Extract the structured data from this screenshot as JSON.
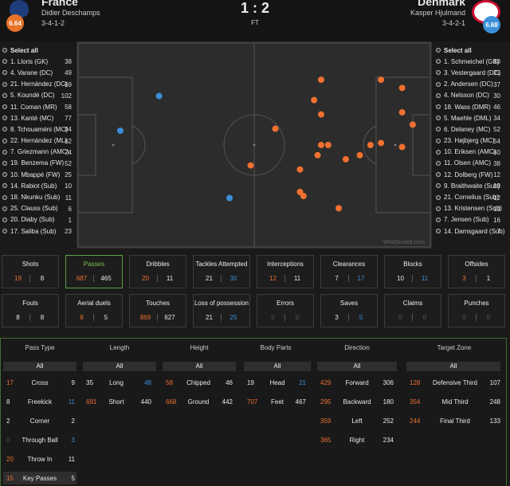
{
  "header": {
    "home": {
      "name": "France",
      "coach": "Didier Deschamps",
      "formation": "3-4-1-2",
      "rating": "6.64",
      "crest_color": "#1e3c7a",
      "badge_color": "#e8732a"
    },
    "away": {
      "name": "Denmark",
      "coach": "Kasper Hjulmand",
      "formation": "3-4-2-1",
      "rating": "6.68",
      "crest_color": "#c8102e",
      "badge_color": "#3b8fd8"
    },
    "score": "1 : 2",
    "status": "FT"
  },
  "home_players": [
    {
      "name": "Select all",
      "value": ""
    },
    {
      "name": "1. Lloris (GK)",
      "value": "38"
    },
    {
      "name": "4. Varane (DC)",
      "value": "49"
    },
    {
      "name": "21. Hernández (DC)",
      "value": "69"
    },
    {
      "name": "5. Koundé (DC)",
      "value": "102"
    },
    {
      "name": "11. Coman (MR)",
      "value": "58"
    },
    {
      "name": "13. Kanté (MC)",
      "value": "77"
    },
    {
      "name": "8. Tchouaméni (MC)",
      "value": "94"
    },
    {
      "name": "22. Hernández (ML)",
      "value": "62"
    },
    {
      "name": "7. Griezmann (AMC)",
      "value": "74"
    },
    {
      "name": "19. Benzema (FW)",
      "value": "52"
    },
    {
      "name": "10. Mbappé (FW)",
      "value": "25"
    },
    {
      "name": "14. Rabiot (Sub)",
      "value": "10"
    },
    {
      "name": "18. Nkunku (Sub)",
      "value": "11"
    },
    {
      "name": "25. Clauss (Sub)",
      "value": "6"
    },
    {
      "name": "20. Diaby (Sub)",
      "value": "1"
    },
    {
      "name": "17. Saliba (Sub)",
      "value": "23"
    }
  ],
  "away_players": [
    {
      "name": "Select all",
      "value": ""
    },
    {
      "name": "1. Schmeichel (GK)",
      "value": "30"
    },
    {
      "name": "3. Vestergaard (DC)",
      "value": "22"
    },
    {
      "name": "2. Andersen (DC)",
      "value": "37"
    },
    {
      "name": "4. Nelsson (DC)",
      "value": "30"
    },
    {
      "name": "18. Wass (DMR)",
      "value": "46"
    },
    {
      "name": "5. Maehle (DML)",
      "value": "34"
    },
    {
      "name": "6. Delaney (MC)",
      "value": "52"
    },
    {
      "name": "23. Højbjerg (MC)",
      "value": "54"
    },
    {
      "name": "10. Eriksen (AMC)",
      "value": "60"
    },
    {
      "name": "11. Olsen (AMC)",
      "value": "38"
    },
    {
      "name": "12. Dolberg (FW)",
      "value": "12"
    },
    {
      "name": "9. Braithwaite (Sub)",
      "value": "19"
    },
    {
      "name": "21. Cornelius (Sub)",
      "value": "12"
    },
    {
      "name": "13. Kristensen (Sub)",
      "value": "13"
    },
    {
      "name": "7. Jensen (Sub)",
      "value": "16"
    },
    {
      "name": "14. Damsgaard (Sub)",
      "value": "7"
    }
  ],
  "pitch": {
    "watermark": "WhoScored.com",
    "home_passes": [
      [
        49,
        60
      ],
      [
        63,
        62
      ],
      [
        64,
        75
      ],
      [
        68,
        55
      ],
      [
        71,
        50
      ],
      [
        83,
        50
      ],
      [
        86,
        49
      ],
      [
        92,
        51
      ],
      [
        95,
        40
      ],
      [
        92,
        34
      ],
      [
        92,
        22
      ],
      [
        86,
        18
      ],
      [
        69,
        18
      ],
      [
        67,
        28
      ],
      [
        69,
        35
      ],
      [
        69,
        50
      ],
      [
        80,
        55
      ],
      [
        76,
        57
      ],
      [
        74,
        81
      ],
      [
        56,
        42
      ],
      [
        63,
        73
      ]
    ],
    "away_passes": [
      [
        12,
        43
      ],
      [
        23,
        26
      ],
      [
        43,
        76
      ]
    ]
  },
  "stats_row1": [
    {
      "label": "Shots",
      "home": "19",
      "away": "8",
      "home_color": "#f07030",
      "away_color": "#e8e8e8"
    },
    {
      "label": "Passes",
      "home": "687",
      "away": "465",
      "home_color": "#f07030",
      "away_color": "#e8e8e8",
      "active": true
    },
    {
      "label": "Dribbles",
      "home": "20",
      "away": "11",
      "home_color": "#f07030",
      "away_color": "#e8e8e8"
    },
    {
      "label": "Tackles Attempted",
      "home": "21",
      "away": "30",
      "home_color": "#e8e8e8",
      "away_color": "#3b8fd8"
    },
    {
      "label": "Interceptions",
      "home": "12",
      "away": "11",
      "home_color": "#f07030",
      "away_color": "#e8e8e8"
    },
    {
      "label": "Clearances",
      "home": "7",
      "away": "17",
      "home_color": "#e8e8e8",
      "away_color": "#3b8fd8"
    },
    {
      "label": "Blocks",
      "home": "10",
      "away": "11",
      "home_color": "#e8e8e8",
      "away_color": "#3b8fd8"
    },
    {
      "label": "Offsides",
      "home": "3",
      "away": "1",
      "home_color": "#f07030",
      "away_color": "#e8e8e8"
    }
  ],
  "stats_row2": [
    {
      "label": "Fouls",
      "home": "8",
      "away": "8",
      "home_color": "#e8e8e8",
      "away_color": "#e8e8e8"
    },
    {
      "label": "Aerial duels",
      "home": "8",
      "away": "5",
      "home_color": "#f07030",
      "away_color": "#e8e8e8"
    },
    {
      "label": "Touches",
      "home": "869",
      "away": "627",
      "home_color": "#f07030",
      "away_color": "#e8e8e8"
    },
    {
      "label": "Loss of possession",
      "home": "21",
      "away": "25",
      "home_color": "#e8e8e8",
      "away_color": "#3b8fd8"
    },
    {
      "label": "Errors",
      "home": "0",
      "away": "0",
      "home_color": "#555555",
      "away_color": "#555555"
    },
    {
      "label": "Saves",
      "home": "3",
      "away": "5",
      "home_color": "#e8e8e8",
      "away_color": "#3b8fd8"
    },
    {
      "label": "Claims",
      "home": "0",
      "away": "0",
      "home_color": "#555555",
      "away_color": "#555555"
    },
    {
      "label": "Punches",
      "home": "0",
      "away": "0",
      "home_color": "#555555",
      "away_color": "#555555"
    }
  ],
  "filters": {
    "all_label": "All",
    "columns": [
      {
        "title": "Pass Type",
        "rows": [
          {
            "label": "Cross",
            "home": "17",
            "away": "9",
            "home_color": "#f07030",
            "away_color": "#e8e8e8"
          },
          {
            "label": "Freekick",
            "home": "8",
            "away": "11",
            "home_color": "#e8e8e8",
            "away_color": "#3b8fd8"
          },
          {
            "label": "Corner",
            "home": "2",
            "away": "2",
            "home_color": "#e8e8e8",
            "away_color": "#e8e8e8"
          },
          {
            "label": "Through Ball",
            "home": "0",
            "away": "3",
            "home_color": "#555555",
            "away_color": "#3b8fd8"
          },
          {
            "label": "Throw In",
            "home": "20",
            "away": "11",
            "home_color": "#f07030",
            "away_color": "#e8e8e8"
          },
          {
            "label": "Key Passes",
            "home": "15",
            "away": "5",
            "home_color": "#f07030",
            "away_color": "#e8e8e8"
          }
        ]
      },
      {
        "title": "Length",
        "rows": [
          {
            "label": "Long",
            "home": "35",
            "away": "48",
            "home_color": "#e8e8e8",
            "away_color": "#3b8fd8"
          },
          {
            "label": "Short",
            "home": "691",
            "away": "440",
            "home_color": "#f07030",
            "away_color": "#e8e8e8"
          }
        ]
      },
      {
        "title": "Height",
        "rows": [
          {
            "label": "Chipped",
            "home": "58",
            "away": "46",
            "home_color": "#f07030",
            "away_color": "#e8e8e8"
          },
          {
            "label": "Ground",
            "home": "668",
            "away": "442",
            "home_color": "#f07030",
            "away_color": "#e8e8e8"
          }
        ]
      },
      {
        "title": "Body Parts",
        "rows": [
          {
            "label": "Head",
            "home": "19",
            "away": "21",
            "home_color": "#e8e8e8",
            "away_color": "#3b8fd8"
          },
          {
            "label": "Feet",
            "home": "707",
            "away": "467",
            "home_color": "#f07030",
            "away_color": "#e8e8e8"
          }
        ]
      },
      {
        "title": "Direction",
        "rows": [
          {
            "label": "Forward",
            "home": "429",
            "away": "306",
            "home_color": "#f07030",
            "away_color": "#e8e8e8"
          },
          {
            "label": "Backward",
            "home": "295",
            "away": "180",
            "home_color": "#f07030",
            "away_color": "#e8e8e8"
          },
          {
            "label": "Left",
            "home": "359",
            "away": "252",
            "home_color": "#f07030",
            "away_color": "#e8e8e8"
          },
          {
            "label": "Right",
            "home": "365",
            "away": "234",
            "home_color": "#f07030",
            "away_color": "#e8e8e8"
          }
        ]
      },
      {
        "title": "Target Zone",
        "rows": [
          {
            "label": "Defensive Third",
            "home": "128",
            "away": "107",
            "home_color": "#f07030",
            "away_color": "#e8e8e8"
          },
          {
            "label": "Mid Third",
            "home": "354",
            "away": "248",
            "home_color": "#f07030",
            "away_color": "#e8e8e8"
          },
          {
            "label": "Final Third",
            "home": "244",
            "away": "133",
            "home_color": "#f07030",
            "away_color": "#e8e8e8"
          }
        ]
      }
    ]
  }
}
